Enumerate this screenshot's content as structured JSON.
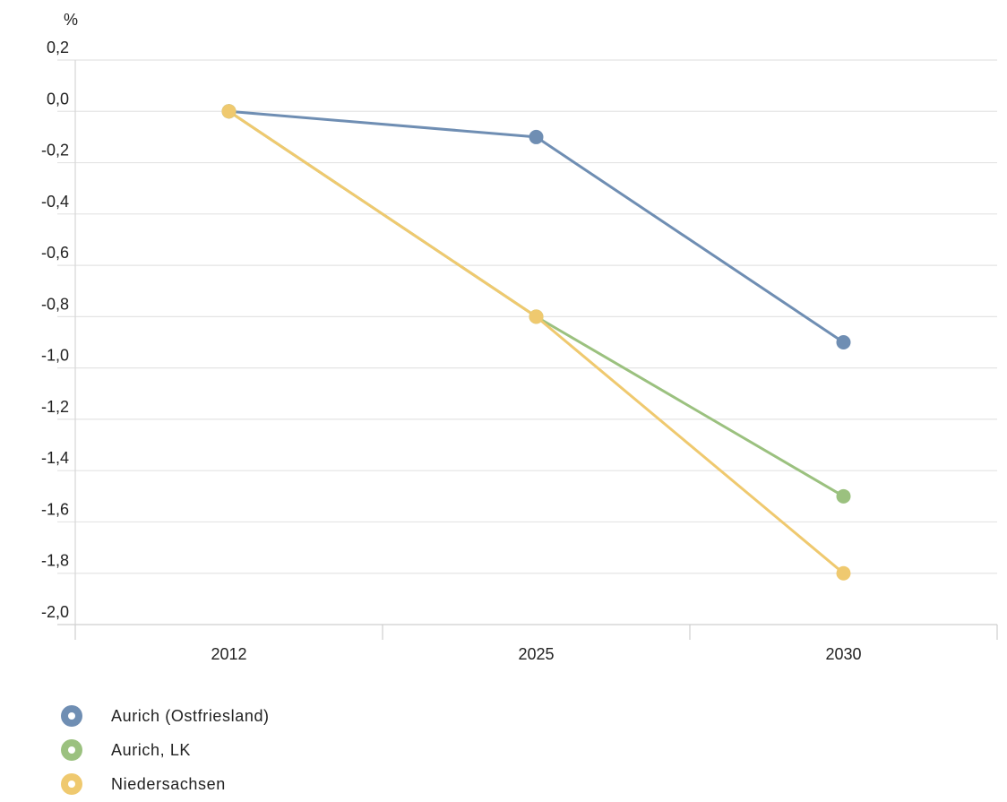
{
  "chart_data": {
    "type": "line",
    "y_unit_label": "%",
    "x": [
      "2012",
      "2025",
      "2030"
    ],
    "ylim": [
      -2.0,
      0.2
    ],
    "y_ticks": [
      "0,2",
      "0,0",
      "-0,2",
      "-0,4",
      "-0,6",
      "-0,8",
      "-1,0",
      "-1,2",
      "-1,4",
      "-1,6",
      "-1,8",
      "-2,0"
    ],
    "y_tick_values": [
      0.2,
      0.0,
      -0.2,
      -0.4,
      -0.6,
      -0.8,
      -1.0,
      -1.2,
      -1.4,
      -1.6,
      -1.8,
      -2.0
    ],
    "grid": true,
    "legend_position": "bottom-left",
    "series": [
      {
        "name": "Aurich (Ostfriesland)",
        "values": [
          0.0,
          -0.1,
          -0.9
        ],
        "color": "#6f8eb3"
      },
      {
        "name": "Aurich, LK",
        "values": [
          0.0,
          -0.8,
          -1.5
        ],
        "color": "#9bc17f"
      },
      {
        "name": "Niedersachsen",
        "values": [
          0.0,
          -0.8,
          -1.8
        ],
        "color": "#efc96f"
      }
    ]
  }
}
